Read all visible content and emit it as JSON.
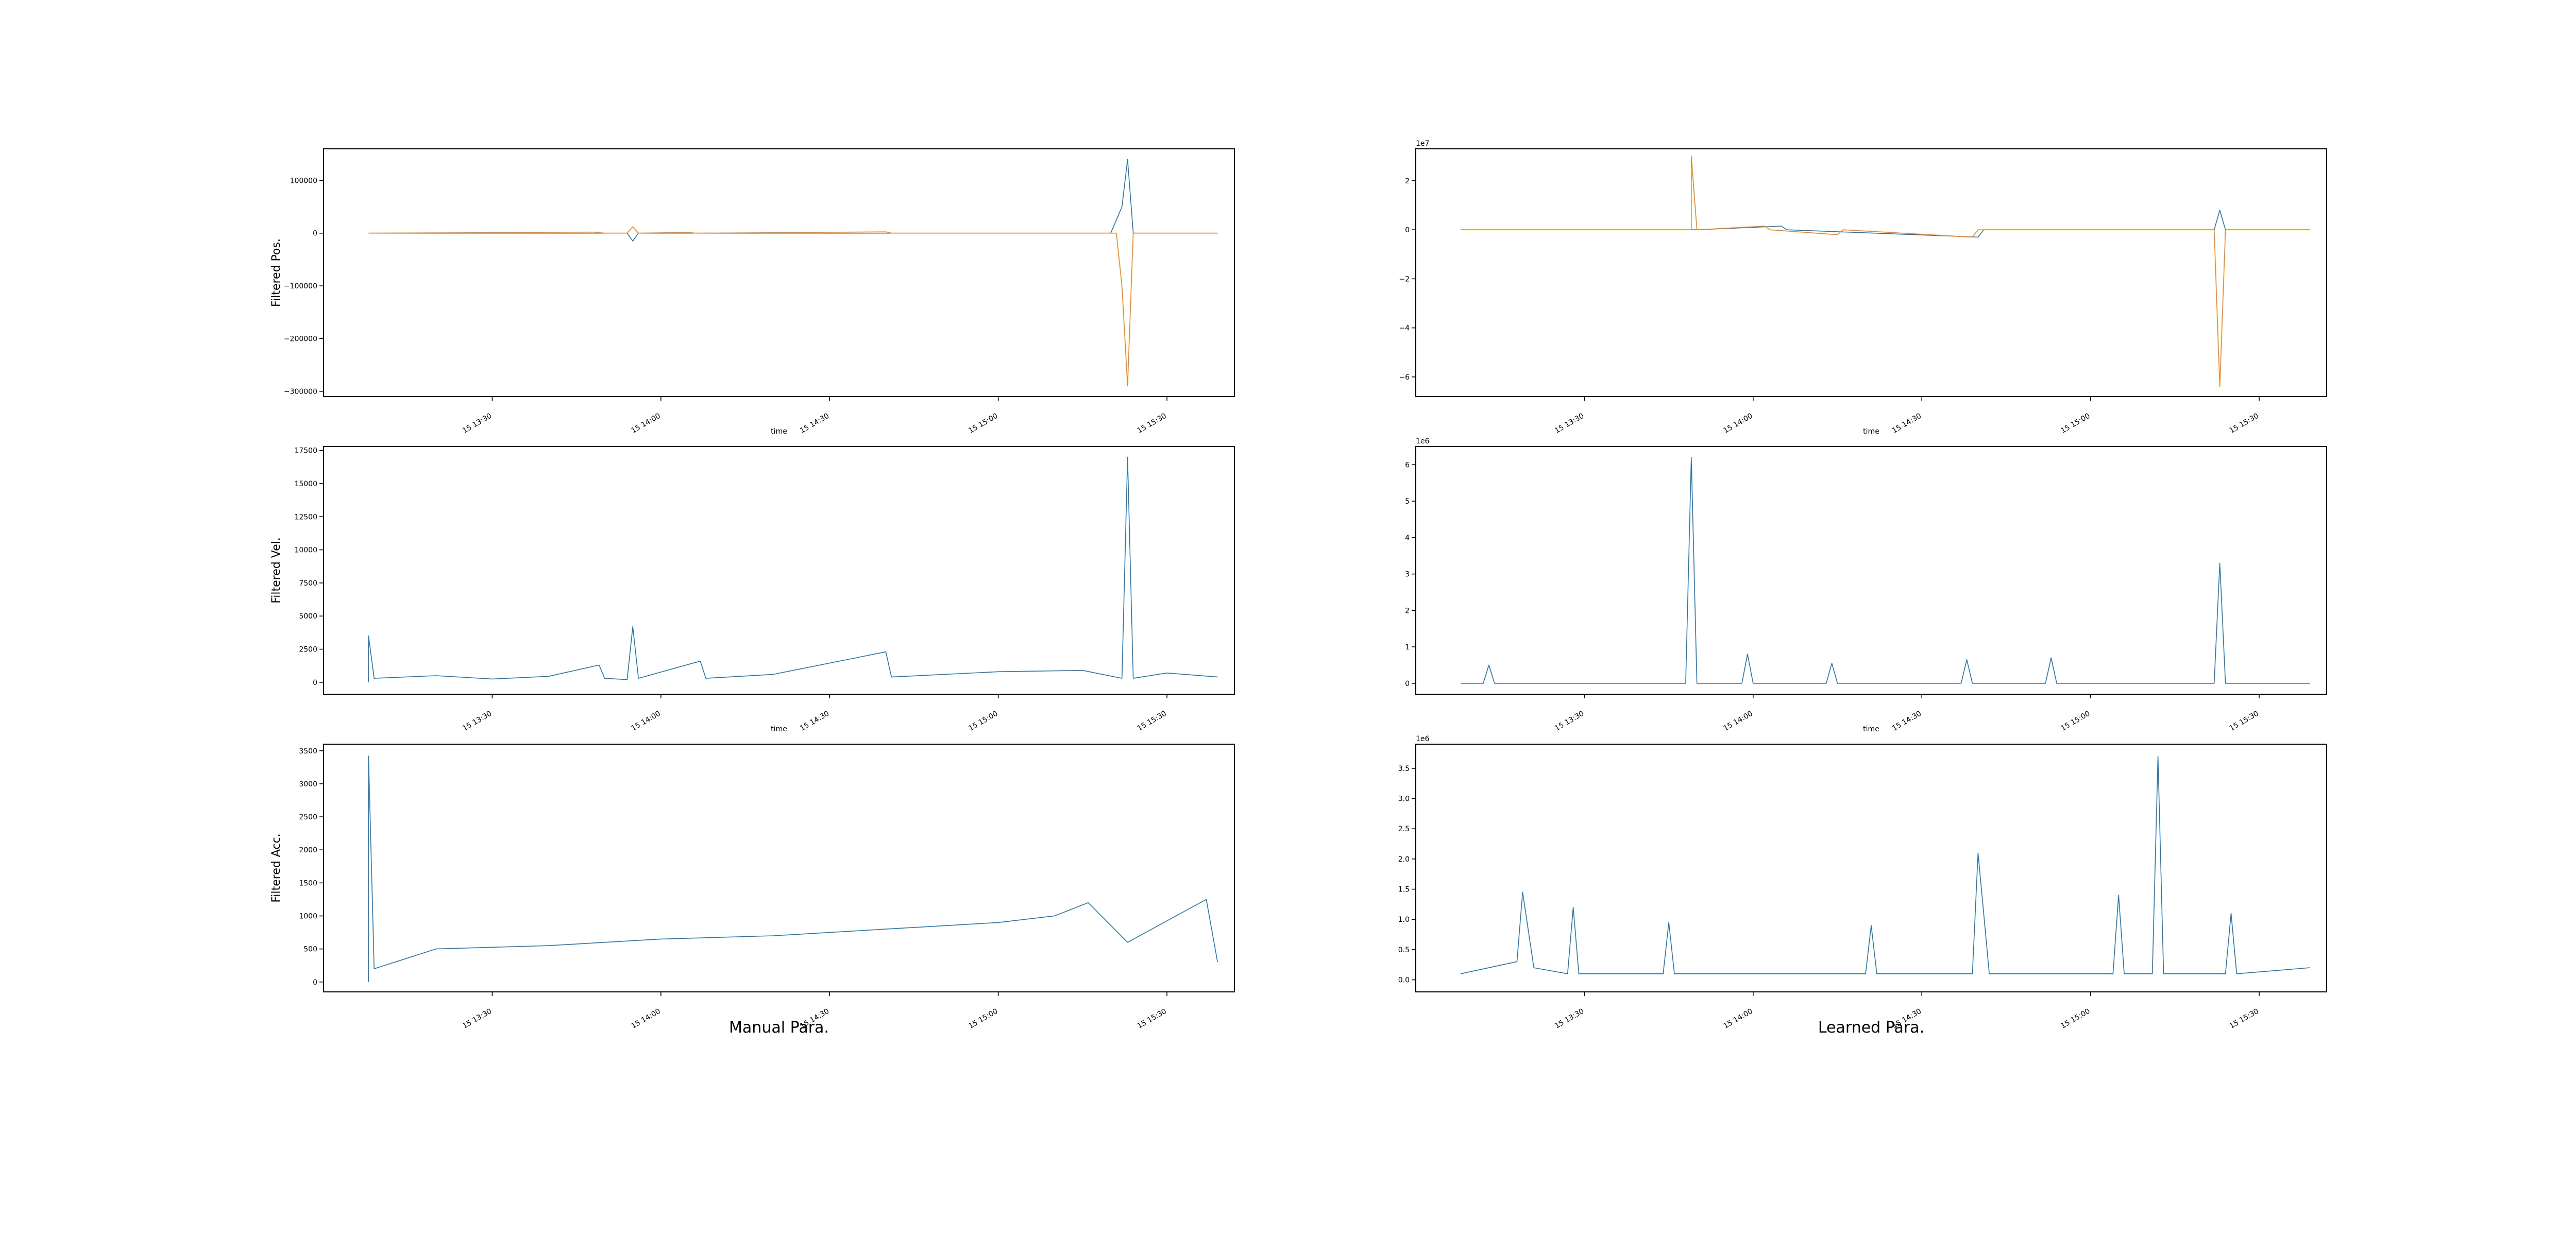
{
  "colors": {
    "series_blue": "#1f77b4",
    "series_orange": "#ff7f0e"
  },
  "figure": {
    "column_titles": [
      "Manual Para.",
      "Learned Para."
    ]
  },
  "chart_data": [
    {
      "id": "manual-pos",
      "type": "line",
      "column": "Manual Para.",
      "title": "",
      "xlabel": "time",
      "ylabel": "Filtered Pos.",
      "offset": "",
      "xlim": [
        "2023-05-15 13:00",
        "2023-05-15 15:42"
      ],
      "ylim": [
        -310000,
        160000
      ],
      "xticks": [
        {
          "label": "15 13:30",
          "x": "2023-05-15 13:30"
        },
        {
          "label": "15 14:00",
          "x": "2023-05-15 14:00"
        },
        {
          "label": "15 14:30",
          "x": "2023-05-15 14:30"
        },
        {
          "label": "15 15:00",
          "x": "2023-05-15 15:00"
        },
        {
          "label": "15 15:30",
          "x": "2023-05-15 15:30"
        }
      ],
      "yticks": [
        {
          "label": "100000",
          "value": 100000
        },
        {
          "label": "0",
          "value": 0
        },
        {
          "label": "−100000",
          "value": -100000
        },
        {
          "label": "−200000",
          "value": -200000
        },
        {
          "label": "−300000",
          "value": -300000
        }
      ],
      "series": [
        {
          "color": "#1f77b4",
          "points": [
            [
              "2023-05-15 13:08",
              0
            ],
            [
              "2023-05-15 13:47",
              0
            ],
            [
              "2023-05-15 13:54",
              0
            ],
            [
              "2023-05-15 13:55",
              -15000
            ],
            [
              "2023-05-15 13:56",
              0
            ],
            [
              "2023-05-15 14:58",
              0
            ],
            [
              "2023-05-15 15:20",
              0
            ],
            [
              "2023-05-15 15:22",
              50000
            ],
            [
              "2023-05-15 15:23",
              140000
            ],
            [
              "2023-05-15 15:24",
              0
            ],
            [
              "2023-05-15 15:39",
              0
            ]
          ]
        },
        {
          "color": "#ff7f0e",
          "points": [
            [
              "2023-05-15 13:08",
              0
            ],
            [
              "2023-05-15 13:48",
              2000
            ],
            [
              "2023-05-15 13:50",
              0
            ],
            [
              "2023-05-15 13:54",
              0
            ],
            [
              "2023-05-15 13:55",
              12000
            ],
            [
              "2023-05-15 13:56",
              0
            ],
            [
              "2023-05-15 14:05",
              1500
            ],
            [
              "2023-05-15 14:06",
              0
            ],
            [
              "2023-05-15 14:40",
              2500
            ],
            [
              "2023-05-15 14:41",
              0
            ],
            [
              "2023-05-15 15:21",
              0
            ],
            [
              "2023-05-15 15:22",
              -100000
            ],
            [
              "2023-05-15 15:23",
              -290000
            ],
            [
              "2023-05-15 15:24",
              0
            ],
            [
              "2023-05-15 15:39",
              0
            ]
          ]
        }
      ]
    },
    {
      "id": "manual-vel",
      "type": "line",
      "column": "Manual Para.",
      "title": "",
      "xlabel": "time",
      "ylabel": "Filtered Vel.",
      "offset": "",
      "xlim": [
        "2023-05-15 13:00",
        "2023-05-15 15:42"
      ],
      "ylim": [
        -900,
        17800
      ],
      "xticks": [
        {
          "label": "15 13:30",
          "x": "2023-05-15 13:30"
        },
        {
          "label": "15 14:00",
          "x": "2023-05-15 14:00"
        },
        {
          "label": "15 14:30",
          "x": "2023-05-15 14:30"
        },
        {
          "label": "15 15:00",
          "x": "2023-05-15 15:00"
        },
        {
          "label": "15 15:30",
          "x": "2023-05-15 15:30"
        }
      ],
      "yticks": [
        {
          "label": "17500",
          "value": 17500
        },
        {
          "label": "15000",
          "value": 15000
        },
        {
          "label": "12500",
          "value": 12500
        },
        {
          "label": "10000",
          "value": 10000
        },
        {
          "label": "7500",
          "value": 7500
        },
        {
          "label": "5000",
          "value": 5000
        },
        {
          "label": "2500",
          "value": 2500
        },
        {
          "label": "0",
          "value": 0
        }
      ],
      "series": [
        {
          "color": "#1f77b4",
          "points": [
            [
              "2023-05-15 13:08",
              0
            ],
            [
              "2023-05-15 13:08",
              3500
            ],
            [
              "2023-05-15 13:09",
              300
            ],
            [
              "2023-05-15 13:20",
              500
            ],
            [
              "2023-05-15 13:30",
              250
            ],
            [
              "2023-05-15 13:40",
              450
            ],
            [
              "2023-05-15 13:49",
              1300
            ],
            [
              "2023-05-15 13:50",
              300
            ],
            [
              "2023-05-15 13:54",
              200
            ],
            [
              "2023-05-15 13:55",
              4200
            ],
            [
              "2023-05-15 13:56",
              300
            ],
            [
              "2023-05-15 14:07",
              1600
            ],
            [
              "2023-05-15 14:08",
              300
            ],
            [
              "2023-05-15 14:20",
              600
            ],
            [
              "2023-05-15 14:40",
              2300
            ],
            [
              "2023-05-15 14:41",
              400
            ],
            [
              "2023-05-15 15:00",
              800
            ],
            [
              "2023-05-15 15:15",
              900
            ],
            [
              "2023-05-15 15:22",
              300
            ],
            [
              "2023-05-15 15:23",
              17000
            ],
            [
              "2023-05-15 15:24",
              300
            ],
            [
              "2023-05-15 15:30",
              700
            ],
            [
              "2023-05-15 15:39",
              400
            ]
          ]
        }
      ]
    },
    {
      "id": "manual-acc",
      "type": "line",
      "column": "Manual Para.",
      "title": "",
      "xlabel": "",
      "ylabel": "Filtered Acc.",
      "offset": "",
      "xlim": [
        "2023-05-15 13:00",
        "2023-05-15 15:42"
      ],
      "ylim": [
        -150,
        3600
      ],
      "xticks": [
        {
          "label": "15 13:30",
          "x": "2023-05-15 13:30"
        },
        {
          "label": "15 14:00",
          "x": "2023-05-15 14:00"
        },
        {
          "label": "15 14:30",
          "x": "2023-05-15 14:30"
        },
        {
          "label": "15 15:00",
          "x": "2023-05-15 15:00"
        },
        {
          "label": "15 15:30",
          "x": "2023-05-15 15:30"
        }
      ],
      "yticks": [
        {
          "label": "3500",
          "value": 3500
        },
        {
          "label": "3000",
          "value": 3000
        },
        {
          "label": "2500",
          "value": 2500
        },
        {
          "label": "2000",
          "value": 2000
        },
        {
          "label": "1500",
          "value": 1500
        },
        {
          "label": "1000",
          "value": 1000
        },
        {
          "label": "500",
          "value": 500
        },
        {
          "label": "0",
          "value": 0
        }
      ],
      "series": [
        {
          "color": "#1f77b4",
          "points": [
            [
              "2023-05-15 13:08",
              0
            ],
            [
              "2023-05-15 13:08",
              3420
            ],
            [
              "2023-05-15 13:09",
              200
            ],
            [
              "2023-05-15 13:20",
              500
            ],
            [
              "2023-05-15 13:40",
              550
            ],
            [
              "2023-05-15 14:00",
              650
            ],
            [
              "2023-05-15 14:20",
              700
            ],
            [
              "2023-05-15 14:40",
              800
            ],
            [
              "2023-05-15 15:00",
              900
            ],
            [
              "2023-05-15 15:10",
              1000
            ],
            [
              "2023-05-15 15:16",
              1200
            ],
            [
              "2023-05-15 15:23",
              600
            ],
            [
              "2023-05-15 15:37",
              1250
            ],
            [
              "2023-05-15 15:39",
              300
            ]
          ]
        }
      ]
    },
    {
      "id": "learned-pos",
      "type": "line",
      "column": "Learned Para.",
      "title": "",
      "xlabel": "time",
      "ylabel": "",
      "offset": "1e7",
      "xlim": [
        "2023-05-15 13:00",
        "2023-05-15 15:42"
      ],
      "ylim": [
        -6.8,
        3.3
      ],
      "xticks": [
        {
          "label": "15 13:30",
          "x": "2023-05-15 13:30"
        },
        {
          "label": "15 14:00",
          "x": "2023-05-15 14:00"
        },
        {
          "label": "15 14:30",
          "x": "2023-05-15 14:30"
        },
        {
          "label": "15 15:00",
          "x": "2023-05-15 15:00"
        },
        {
          "label": "15 15:30",
          "x": "2023-05-15 15:30"
        }
      ],
      "yticks": [
        {
          "label": "2",
          "value": 2
        },
        {
          "label": "0",
          "value": 0
        },
        {
          "label": "−2",
          "value": -2
        },
        {
          "label": "−4",
          "value": -4
        },
        {
          "label": "−6",
          "value": -6
        }
      ],
      "series": [
        {
          "color": "#1f77b4",
          "points": [
            [
              "2023-05-15 13:08",
              0
            ],
            [
              "2023-05-15 13:50",
              0
            ],
            [
              "2023-05-15 14:05",
              0.15
            ],
            [
              "2023-05-15 14:06",
              0
            ],
            [
              "2023-05-15 14:40",
              -0.3
            ],
            [
              "2023-05-15 14:41",
              0
            ],
            [
              "2023-05-15 15:22",
              0
            ],
            [
              "2023-05-15 15:23",
              0.8
            ],
            [
              "2023-05-15 15:24",
              0
            ],
            [
              "2023-05-15 15:39",
              0
            ]
          ]
        },
        {
          "color": "#ff7f0e",
          "points": [
            [
              "2023-05-15 13:08",
              0
            ],
            [
              "2023-05-15 13:49",
              0
            ],
            [
              "2023-05-15 13:49",
              3.0
            ],
            [
              "2023-05-15 13:50",
              0
            ],
            [
              "2023-05-15 14:02",
              0.15
            ],
            [
              "2023-05-15 14:03",
              0
            ],
            [
              "2023-05-15 14:15",
              -0.2
            ],
            [
              "2023-05-15 14:16",
              0
            ],
            [
              "2023-05-15 14:39",
              -0.3
            ],
            [
              "2023-05-15 14:40",
              0
            ],
            [
              "2023-05-15 15:22",
              0
            ],
            [
              "2023-05-15 15:23",
              -6.4
            ],
            [
              "2023-05-15 15:24",
              0
            ],
            [
              "2023-05-15 15:39",
              0
            ]
          ]
        }
      ]
    },
    {
      "id": "learned-vel",
      "type": "line",
      "column": "Learned Para.",
      "title": "",
      "xlabel": "time",
      "ylabel": "",
      "offset": "1e6",
      "xlim": [
        "2023-05-15 13:00",
        "2023-05-15 15:42"
      ],
      "ylim": [
        -0.3,
        6.5
      ],
      "xticks": [
        {
          "label": "15 13:30",
          "x": "2023-05-15 13:30"
        },
        {
          "label": "15 14:00",
          "x": "2023-05-15 14:00"
        },
        {
          "label": "15 14:30",
          "x": "2023-05-15 14:30"
        },
        {
          "label": "15 15:00",
          "x": "2023-05-15 15:00"
        },
        {
          "label": "15 15:30",
          "x": "2023-05-15 15:30"
        }
      ],
      "yticks": [
        {
          "label": "6",
          "value": 6
        },
        {
          "label": "5",
          "value": 5
        },
        {
          "label": "4",
          "value": 4
        },
        {
          "label": "3",
          "value": 3
        },
        {
          "label": "2",
          "value": 2
        },
        {
          "label": "1",
          "value": 1
        },
        {
          "label": "0",
          "value": 0
        }
      ],
      "series": [
        {
          "color": "#1f77b4",
          "points": [
            [
              "2023-05-15 13:08",
              0
            ],
            [
              "2023-05-15 13:12",
              0
            ],
            [
              "2023-05-15 13:13",
              0.5
            ],
            [
              "2023-05-15 13:14",
              0
            ],
            [
              "2023-05-15 13:48",
              0
            ],
            [
              "2023-05-15 13:49",
              6.2
            ],
            [
              "2023-05-15 13:50",
              0
            ],
            [
              "2023-05-15 13:58",
              0
            ],
            [
              "2023-05-15 13:59",
              0.8
            ],
            [
              "2023-05-15 14:00",
              0
            ],
            [
              "2023-05-15 14:13",
              0
            ],
            [
              "2023-05-15 14:14",
              0.55
            ],
            [
              "2023-05-15 14:15",
              0
            ],
            [
              "2023-05-15 14:37",
              0
            ],
            [
              "2023-05-15 14:38",
              0.65
            ],
            [
              "2023-05-15 14:39",
              0
            ],
            [
              "2023-05-15 14:52",
              0
            ],
            [
              "2023-05-15 14:53",
              0.7
            ],
            [
              "2023-05-15 14:54",
              0
            ],
            [
              "2023-05-15 15:22",
              0
            ],
            [
              "2023-05-15 15:23",
              3.3
            ],
            [
              "2023-05-15 15:24",
              0
            ],
            [
              "2023-05-15 15:39",
              0
            ]
          ]
        }
      ]
    },
    {
      "id": "learned-acc",
      "type": "line",
      "column": "Learned Para.",
      "title": "",
      "xlabel": "",
      "ylabel": "",
      "offset": "1e6",
      "xlim": [
        "2023-05-15 13:00",
        "2023-05-15 15:42"
      ],
      "ylim": [
        -0.2,
        3.9
      ],
      "xticks": [
        {
          "label": "15 13:30",
          "x": "2023-05-15 13:30"
        },
        {
          "label": "15 14:00",
          "x": "2023-05-15 14:00"
        },
        {
          "label": "15 14:30",
          "x": "2023-05-15 14:30"
        },
        {
          "label": "15 15:00",
          "x": "2023-05-15 15:00"
        },
        {
          "label": "15 15:30",
          "x": "2023-05-15 15:30"
        }
      ],
      "yticks": [
        {
          "label": "3.5",
          "value": 3.5
        },
        {
          "label": "3.0",
          "value": 3.0
        },
        {
          "label": "2.5",
          "value": 2.5
        },
        {
          "label": "2.0",
          "value": 2.0
        },
        {
          "label": "1.5",
          "value": 1.5
        },
        {
          "label": "1.0",
          "value": 1.0
        },
        {
          "label": "0.5",
          "value": 0.5
        },
        {
          "label": "0.0",
          "value": 0.0
        }
      ],
      "series": [
        {
          "color": "#1f77b4",
          "points": [
            [
              "2023-05-15 13:08",
              0.1
            ],
            [
              "2023-05-15 13:18",
              0.3
            ],
            [
              "2023-05-15 13:19",
              1.45
            ],
            [
              "2023-05-15 13:21",
              0.2
            ],
            [
              "2023-05-15 13:27",
              0.1
            ],
            [
              "2023-05-15 13:28",
              1.2
            ],
            [
              "2023-05-15 13:29",
              0.1
            ],
            [
              "2023-05-15 13:44",
              0.1
            ],
            [
              "2023-05-15 13:45",
              0.95
            ],
            [
              "2023-05-15 13:46",
              0.1
            ],
            [
              "2023-05-15 14:20",
              0.1
            ],
            [
              "2023-05-15 14:21",
              0.9
            ],
            [
              "2023-05-15 14:22",
              0.1
            ],
            [
              "2023-05-15 14:39",
              0.1
            ],
            [
              "2023-05-15 14:40",
              2.1
            ],
            [
              "2023-05-15 14:42",
              0.1
            ],
            [
              "2023-05-15 15:04",
              0.1
            ],
            [
              "2023-05-15 15:05",
              1.4
            ],
            [
              "2023-05-15 15:06",
              0.1
            ],
            [
              "2023-05-15 15:11",
              0.1
            ],
            [
              "2023-05-15 15:12",
              3.7
            ],
            [
              "2023-05-15 15:13",
              0.1
            ],
            [
              "2023-05-15 15:24",
              0.1
            ],
            [
              "2023-05-15 15:25",
              1.1
            ],
            [
              "2023-05-15 15:26",
              0.1
            ],
            [
              "2023-05-15 15:39",
              0.2
            ]
          ]
        }
      ]
    }
  ]
}
